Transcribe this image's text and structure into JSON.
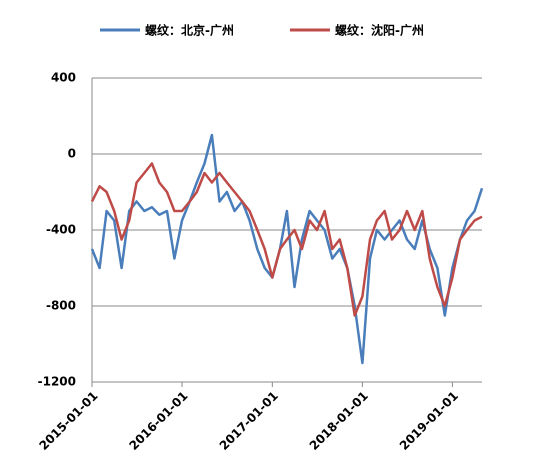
{
  "chart_data": {
    "type": "line",
    "legend": "top",
    "grid": true,
    "x": [
      "2015-01-01",
      "2015-02-01",
      "2015-03-01",
      "2015-04-01",
      "2015-05-01",
      "2015-06-01",
      "2015-07-01",
      "2015-08-01",
      "2015-09-01",
      "2015-10-01",
      "2015-11-01",
      "2015-12-01",
      "2016-01-01",
      "2016-02-01",
      "2016-03-01",
      "2016-04-01",
      "2016-05-01",
      "2016-06-01",
      "2016-07-01",
      "2016-08-01",
      "2016-09-01",
      "2016-10-01",
      "2016-11-01",
      "2016-12-01",
      "2017-01-01",
      "2017-02-01",
      "2017-03-01",
      "2017-04-01",
      "2017-05-01",
      "2017-06-01",
      "2017-07-01",
      "2017-08-01",
      "2017-09-01",
      "2017-10-01",
      "2017-11-01",
      "2017-12-01",
      "2018-01-01",
      "2018-02-01",
      "2018-03-01",
      "2018-04-01",
      "2018-05-01",
      "2018-06-01",
      "2018-07-01",
      "2018-08-01",
      "2018-09-01",
      "2018-10-01",
      "2018-11-01",
      "2018-12-01",
      "2019-01-01",
      "2019-02-01",
      "2019-03-01",
      "2019-04-01",
      "2019-05-01"
    ],
    "series": [
      {
        "name": "螺纹：北京-广州",
        "color": "#4a7ebb",
        "values": [
          -500,
          -600,
          -300,
          -350,
          -600,
          -300,
          -250,
          -300,
          -280,
          -320,
          -300,
          -550,
          -350,
          -250,
          -150,
          -50,
          100,
          -250,
          -200,
          -300,
          -250,
          -350,
          -500,
          -600,
          -650,
          -500,
          -300,
          -700,
          -450,
          -300,
          -350,
          -400,
          -550,
          -500,
          -600,
          -800,
          -1100,
          -550,
          -400,
          -450,
          -400,
          -350,
          -450,
          -500,
          -350,
          -500,
          -600,
          -850,
          -600,
          -450,
          -350,
          -300,
          -180
        ]
      },
      {
        "name": "螺纹：沈阳-广州",
        "color": "#be4b48",
        "values": [
          -250,
          -170,
          -200,
          -300,
          -450,
          -350,
          -150,
          -100,
          -50,
          -150,
          -200,
          -300,
          -300,
          -250,
          -200,
          -100,
          -150,
          -100,
          -150,
          -200,
          -250,
          -300,
          -400,
          -500,
          -650,
          -500,
          -450,
          -400,
          -500,
          -350,
          -400,
          -300,
          -500,
          -450,
          -600,
          -850,
          -750,
          -450,
          -350,
          -300,
          -450,
          -400,
          -300,
          -400,
          -300,
          -550,
          -700,
          -800,
          -650,
          -450,
          -400,
          -350,
          -330
        ]
      }
    ],
    "xlim": [
      "2015-01-01",
      "2019-05-01"
    ],
    "xticks": [
      "2015-01-01",
      "2016-01-01",
      "2017-01-01",
      "2018-01-01",
      "2019-01-01"
    ],
    "ylim": [
      -1200,
      400
    ],
    "yticks": [
      -1200,
      -800,
      -400,
      0,
      400
    ]
  }
}
